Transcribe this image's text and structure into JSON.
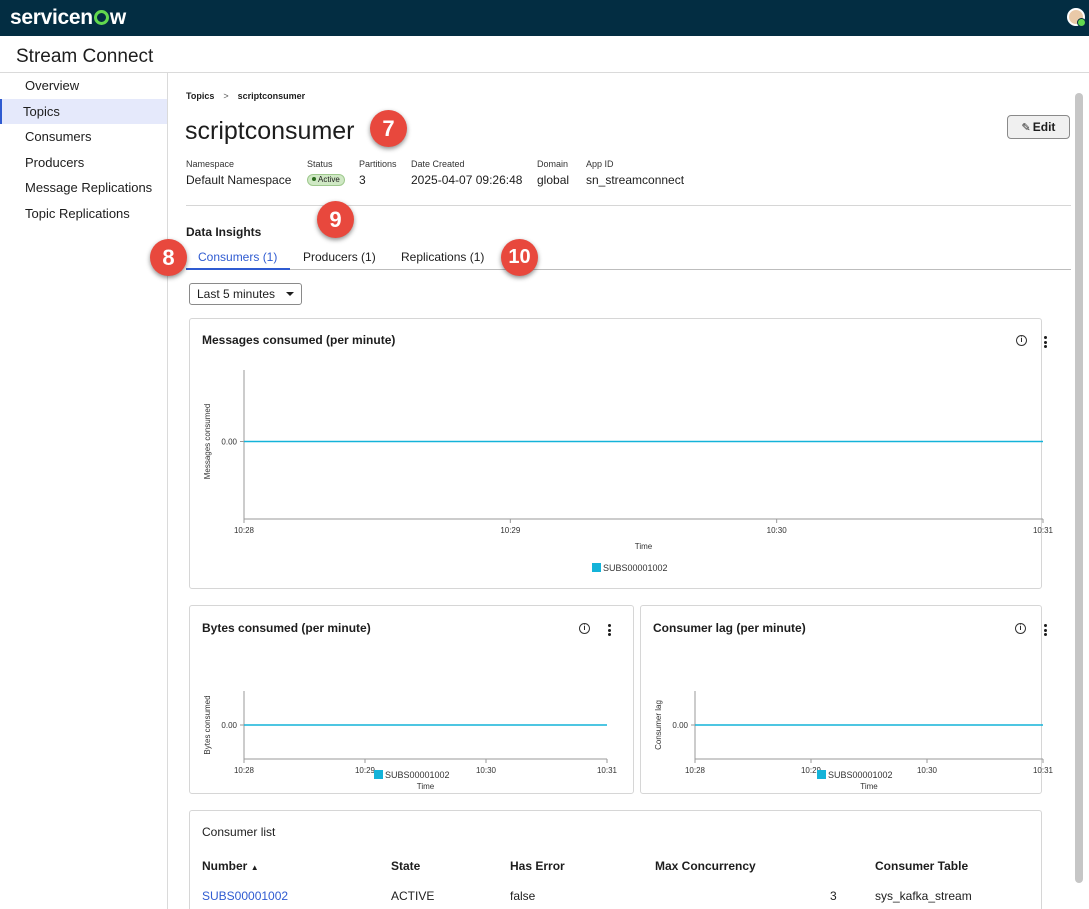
{
  "topbar": {
    "logo_text_pre": "servicen",
    "logo_text_post": "w"
  },
  "app": {
    "title": "Stream Connect"
  },
  "sidebar": {
    "items": [
      {
        "label": "Overview"
      },
      {
        "label": "Topics",
        "active": true
      },
      {
        "label": "Consumers"
      },
      {
        "label": "Producers"
      },
      {
        "label": "Message Replications"
      },
      {
        "label": "Topic Replications"
      }
    ]
  },
  "breadcrumb": {
    "parent": "Topics",
    "separator": ">",
    "current": "scriptconsumer"
  },
  "page": {
    "title": "scriptconsumer",
    "edit_label": "Edit"
  },
  "meta": {
    "namespace": {
      "label": "Namespace",
      "value": "Default Namespace"
    },
    "status": {
      "label": "Status",
      "value": "Active"
    },
    "partitions": {
      "label": "Partitions",
      "value": "3"
    },
    "date_created": {
      "label": "Date Created",
      "value": "2025-04-07 09:26:48"
    },
    "domain": {
      "label": "Domain",
      "value": "global"
    },
    "app_id": {
      "label": "App ID",
      "value": "sn_streamconnect"
    }
  },
  "insights": {
    "title": "Data Insights",
    "tabs": [
      {
        "label": "Consumers (1)",
        "active": true
      },
      {
        "label": "Producers (1)"
      },
      {
        "label": "Replications (1)"
      }
    ],
    "time_range": "Last 5 minutes"
  },
  "cards": {
    "messages": {
      "title": "Messages consumed (per minute)"
    },
    "bytes": {
      "title": "Bytes consumed (per minute)"
    },
    "lag": {
      "title": "Consumer lag (per minute)"
    }
  },
  "chart_data": [
    {
      "type": "line",
      "title": "Messages consumed (per minute)",
      "xlabel": "Time",
      "ylabel": "Messages consumed",
      "x": [
        "10:28",
        "10:29",
        "10:30",
        "10:31"
      ],
      "y_ticks": [
        "0.00"
      ],
      "series": [
        {
          "name": "SUBS00001002",
          "values": [
            0,
            0,
            0,
            0
          ]
        }
      ],
      "color": "#14b3d9",
      "legend": "bottom"
    },
    {
      "type": "line",
      "title": "Bytes consumed (per minute)",
      "xlabel": "Time",
      "ylabel": "Bytes consumed",
      "x": [
        "10:28",
        "10:29",
        "10:30",
        "10:31"
      ],
      "y_ticks": [
        "0.00"
      ],
      "series": [
        {
          "name": "SUBS00001002",
          "values": [
            0,
            0,
            0,
            0
          ]
        }
      ],
      "color": "#14b3d9",
      "legend": "bottom"
    },
    {
      "type": "line",
      "title": "Consumer lag (per minute)",
      "xlabel": "Time",
      "ylabel": "Consumer lag",
      "x": [
        "10:28",
        "10:29",
        "10:30",
        "10:31"
      ],
      "y_ticks": [
        "0.00"
      ],
      "series": [
        {
          "name": "SUBS00001002",
          "values": [
            0,
            0,
            0,
            0
          ]
        }
      ],
      "color": "#14b3d9",
      "legend": "bottom"
    }
  ],
  "consumer_list": {
    "title": "Consumer list",
    "columns": [
      "Number",
      "State",
      "Has Error",
      "Max Concurrency",
      "Consumer Table"
    ],
    "sort_indicator": "▲",
    "rows": [
      {
        "number": "SUBS00001002",
        "state": "ACTIVE",
        "has_error": "false",
        "max_concurrency": "3",
        "consumer_table": "sys_kafka_stream"
      }
    ]
  },
  "callouts": [
    "7",
    "8",
    "9",
    "10"
  ],
  "colors": {
    "accent": "#2f5bd1",
    "topbar": "#032d42",
    "series": "#14b3d9",
    "callout": "#e8483d"
  }
}
